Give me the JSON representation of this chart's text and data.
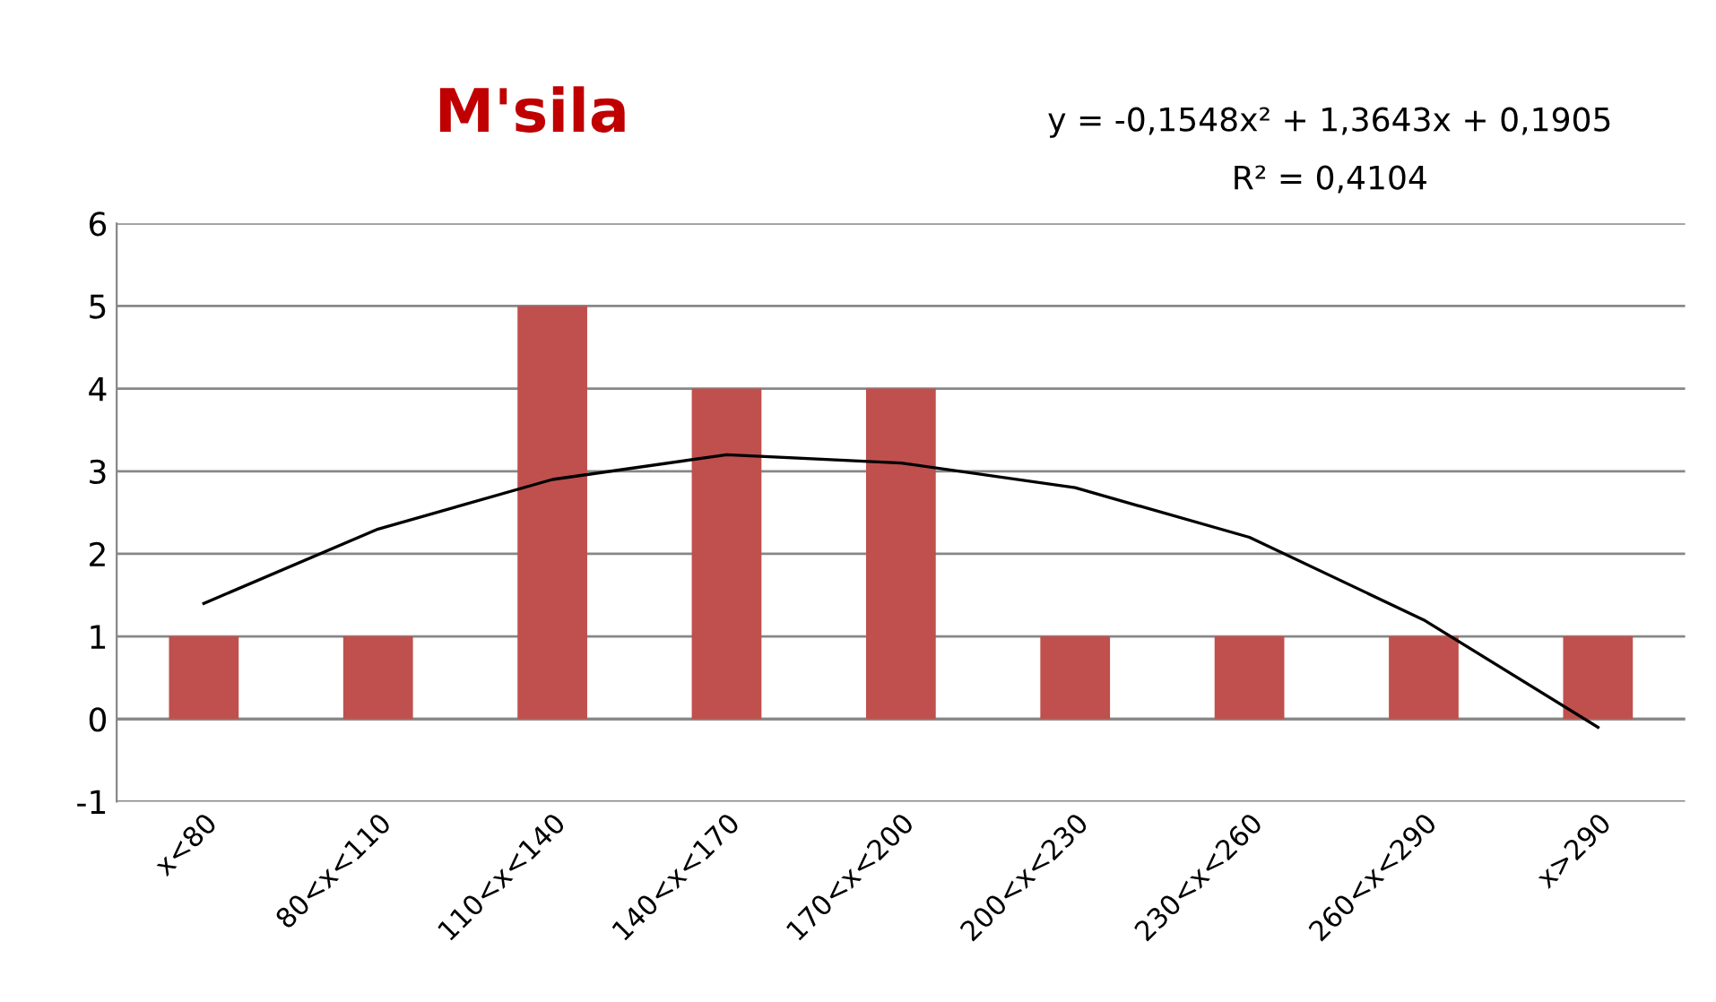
{
  "chart_data": {
    "type": "bar",
    "title": "M'sila",
    "categories": [
      "x<80",
      "80<x<110",
      "110<x<140",
      "140<x<170",
      "170<x<200",
      "200<x<230",
      "230<x<260",
      "260<x<290",
      "x>290"
    ],
    "series": [
      {
        "color": "#c0504d",
        "values": [
          1,
          1,
          5,
          4,
          4,
          1,
          1,
          1,
          1
        ]
      },
      {
        "type": "line",
        "color": "#000000",
        "values": [
          1.4,
          2.3,
          2.9,
          3.2,
          3.1,
          2.8,
          2.2,
          1.2,
          -0.1
        ]
      }
    ],
    "ylim": [
      -1,
      6
    ],
    "yticks": [
      -1,
      0,
      1,
      2,
      3,
      4,
      5,
      6
    ],
    "grid": "y",
    "annotations": [
      "y = -0,1548x² + 1,3643x + 0,1905",
      "R² = 0,4104"
    ]
  }
}
